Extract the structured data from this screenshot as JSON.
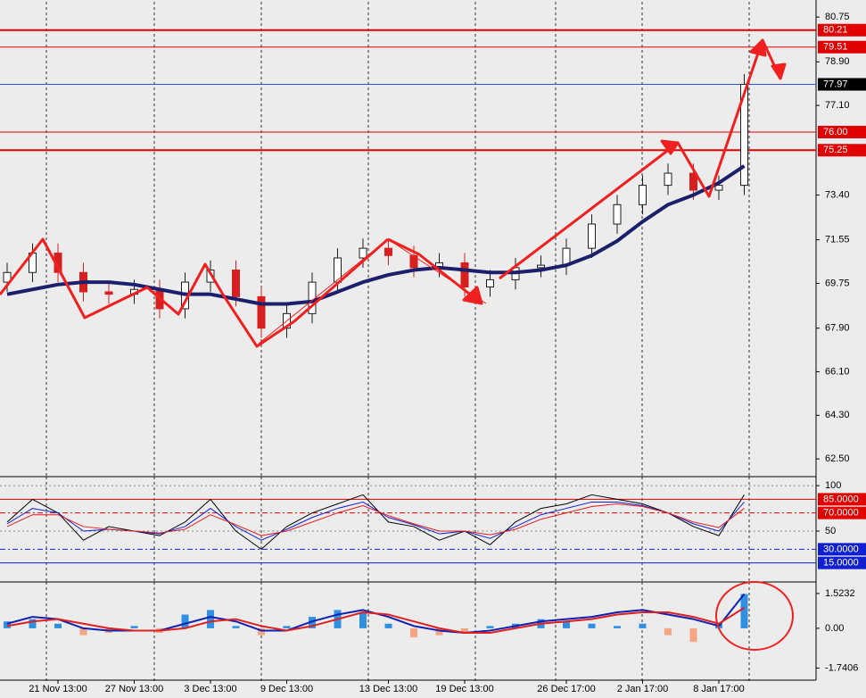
{
  "chart_data": [
    {
      "type": "candlestick",
      "categories": [
        null,
        null,
        "21 Nov 13:00",
        null,
        null,
        "27 Nov 13:00",
        null,
        null,
        "3 Dec 13:00",
        null,
        null,
        "9 Dec 13:00",
        null,
        null,
        null,
        "13 Dec 13:00",
        null,
        null,
        "19 Dec 13:00",
        null,
        null,
        null,
        "26 Dec 17:00",
        null,
        null,
        "2 Jan 17:00",
        null,
        null,
        "8 Jan 17:00",
        null
      ],
      "open": [
        69.8,
        70.2,
        71.0,
        70.2,
        69.4,
        69.3,
        69.5,
        68.7,
        69.8,
        70.3,
        69.2,
        67.9,
        68.5,
        69.8,
        70.8,
        71.2,
        70.9,
        70.4,
        70.6,
        69.6,
        69.9,
        70.4,
        70.5,
        71.2,
        72.2,
        73.0,
        73.8,
        74.3,
        73.6,
        73.8
      ],
      "high": [
        70.6,
        71.4,
        71.4,
        70.6,
        69.8,
        69.9,
        69.9,
        70.2,
        70.7,
        70.7,
        69.6,
        68.9,
        70.2,
        71.2,
        71.6,
        71.6,
        71.3,
        71.0,
        71.0,
        70.3,
        70.8,
        70.9,
        71.6,
        72.6,
        73.4,
        74.2,
        74.7,
        74.7,
        74.2,
        78.4
      ],
      "low": [
        69.4,
        69.8,
        69.8,
        69.0,
        68.9,
        68.9,
        68.3,
        68.3,
        69.4,
        68.8,
        67.5,
        67.5,
        68.1,
        69.4,
        70.4,
        70.5,
        70.0,
        70.0,
        69.2,
        69.2,
        69.5,
        70.0,
        70.1,
        70.8,
        71.8,
        72.6,
        73.4,
        73.2,
        73.2,
        73.4
      ],
      "close": [
        70.2,
        71.0,
        70.2,
        69.4,
        69.3,
        69.5,
        68.7,
        69.8,
        70.3,
        69.2,
        67.9,
        68.5,
        69.8,
        70.8,
        71.2,
        70.9,
        70.4,
        70.6,
        69.6,
        69.9,
        70.4,
        70.5,
        71.2,
        72.2,
        73.0,
        73.8,
        74.3,
        73.6,
        73.8,
        77.97
      ],
      "up_color": "#1e1e1e",
      "down_color": "#d62020",
      "series": [
        {
          "color": "#1c1f6b",
          "width": 4,
          "values": [
            69.3,
            69.5,
            69.7,
            69.8,
            69.8,
            69.7,
            69.5,
            69.3,
            69.3,
            69.1,
            68.9,
            68.9,
            69.0,
            69.4,
            69.8,
            70.1,
            70.3,
            70.4,
            70.3,
            70.2,
            70.2,
            70.3,
            70.5,
            70.9,
            71.5,
            72.3,
            73.0,
            73.4,
            73.9,
            74.6
          ]
        }
      ],
      "ylim": [
        61.84,
        81.27
      ],
      "yticks": [
        80.75,
        {
          "value": 78.9,
          "label": "78.90"
        },
        {
          "value": 77.1,
          "label": "77.10"
        },
        {
          "value": 73.4,
          "label": "73.40"
        },
        71.55,
        69.75,
        {
          "value": 67.9,
          "label": "67.90"
        },
        {
          "value": 66.1,
          "label": "66.10"
        },
        {
          "value": 64.3,
          "label": "64.30"
        },
        {
          "value": 62.5,
          "label": "62.50"
        }
      ],
      "levels": [
        {
          "value": 80.21,
          "label": "80.21",
          "color": "#e00000",
          "label_bg": "#e00000",
          "width": 2
        },
        {
          "value": 79.51,
          "label": "79.51",
          "color": "#e00000",
          "label_bg": "#e00000",
          "width": 1
        },
        {
          "value": 77.97,
          "label": "77.97",
          "color": "#3050d0",
          "label_bg": "#000000",
          "width": 1
        },
        {
          "value": 76,
          "label": "76.00",
          "color": "#e00000",
          "label_bg": "#e00000",
          "width": 1
        },
        {
          "value": 75.25,
          "label": "75.25",
          "color": "#e00000",
          "label_bg": "#e00000",
          "width": 2
        }
      ]
    },
    {
      "type": "line",
      "series": [
        {
          "color": "#000000",
          "width": 1,
          "values": [
            60,
            85,
            70,
            40,
            55,
            50,
            45,
            60,
            85,
            50,
            30,
            55,
            70,
            80,
            90,
            60,
            55,
            40,
            50,
            35,
            60,
            75,
            80,
            90,
            85,
            80,
            70,
            55,
            45,
            90
          ]
        },
        {
          "color": "#1020d0",
          "width": 1,
          "values": [
            58,
            75,
            70,
            50,
            52,
            50,
            47,
            55,
            75,
            55,
            40,
            52,
            65,
            75,
            82,
            65,
            57,
            47,
            50,
            42,
            55,
            68,
            75,
            82,
            82,
            78,
            70,
            58,
            50,
            82
          ]
        },
        {
          "color": "#e02020",
          "width": 1,
          "values": [
            55,
            68,
            68,
            55,
            52,
            50,
            48,
            52,
            68,
            57,
            45,
            50,
            60,
            70,
            78,
            67,
            58,
            50,
            50,
            46,
            52,
            63,
            70,
            77,
            80,
            77,
            70,
            60,
            54,
            75
          ]
        }
      ],
      "ylim": [
        -4,
        107
      ],
      "yticks": [
        100,
        50
      ],
      "levels": [
        {
          "value": 85,
          "label": "85.0000",
          "color": "#e00000",
          "label_bg": "#e00000",
          "width": 1
        },
        {
          "value": 70,
          "label": "70.0000",
          "color": "#e00000",
          "label_bg": "#e00000",
          "width": 1,
          "dash": true
        },
        {
          "value": 30,
          "label": "30.0000",
          "color": "#1020d0",
          "label_bg": "#1020d0",
          "width": 1,
          "dash": true
        },
        {
          "value": 15,
          "label": "15.0000",
          "color": "#1020d0",
          "label_bg": "#1020d0",
          "width": 1
        }
      ]
    },
    {
      "type": "bar",
      "values": [
        0.3,
        0.4,
        0.2,
        -0.3,
        -0.2,
        0.1,
        -0.2,
        0.6,
        0.8,
        0.1,
        -0.3,
        0.1,
        0.5,
        0.8,
        0.7,
        0.2,
        -0.4,
        -0.3,
        -0.2,
        0.1,
        0.2,
        0.4,
        0.3,
        0.2,
        0.1,
        0.2,
        -0.3,
        -0.6,
        0.2,
        1.5
      ],
      "positive_color": "#2f8fe0",
      "negative_color": "#f4a582",
      "series": [
        {
          "color": "#1020b0",
          "width": 2,
          "values": [
            0.2,
            0.5,
            0.4,
            0.0,
            -0.1,
            -0.1,
            -0.1,
            0.2,
            0.5,
            0.3,
            -0.1,
            -0.1,
            0.3,
            0.6,
            0.8,
            0.5,
            0.1,
            -0.1,
            -0.2,
            -0.1,
            0.1,
            0.3,
            0.4,
            0.5,
            0.7,
            0.8,
            0.6,
            0.4,
            0.1,
            1.5
          ]
        },
        {
          "color": "#e02020",
          "width": 2,
          "values": [
            0.1,
            0.3,
            0.4,
            0.2,
            0.0,
            -0.1,
            -0.1,
            0.0,
            0.3,
            0.4,
            0.1,
            -0.1,
            0.1,
            0.4,
            0.7,
            0.6,
            0.3,
            0.0,
            -0.2,
            -0.2,
            0.0,
            0.2,
            0.3,
            0.4,
            0.6,
            0.7,
            0.7,
            0.5,
            0.2,
            0.9
          ]
        }
      ],
      "ylim": [
        -2.27,
        1.91
      ],
      "yticks": [
        1.5232,
        {
          "value": 0,
          "label": "0.00"
        },
        -1.7406
      ]
    }
  ]
}
